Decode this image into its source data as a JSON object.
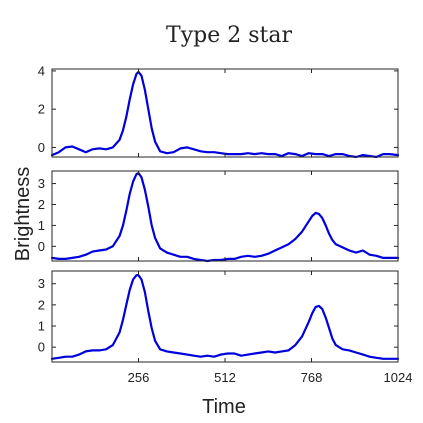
{
  "chart_data": {
    "type": "line",
    "title": "Type 2 star",
    "xlabel": "Time",
    "ylabel": "Brightness",
    "xlim": [
      0,
      1024
    ],
    "x_ticks": [
      256,
      512,
      768,
      1024
    ],
    "x_tick_labels": [
      "256",
      "512",
      "768",
      "1024"
    ],
    "grid": false,
    "line_color": "#0000dd",
    "panels": [
      {
        "ylim": [
          -0.5,
          4.1
        ],
        "y_ticks": [
          0,
          2,
          4
        ],
        "y_tick_labels": [
          "0",
          "2",
          "4"
        ],
        "series": [
          {
            "x": [
              0,
              20,
              40,
              60,
              80,
              100,
              120,
              140,
              160,
              180,
              200,
              210,
              220,
              230,
              240,
              250,
              256,
              265,
              275,
              285,
              295,
              305,
              320,
              340,
              360,
              380,
              400,
              420,
              440,
              460,
              480,
              500,
              520,
              540,
              560,
              580,
              600,
              620,
              640,
              660,
              680,
              700,
              720,
              740,
              760,
              780,
              800,
              820,
              840,
              860,
              880,
              900,
              920,
              940,
              960,
              980,
              1000,
              1024
            ],
            "y": [
              -0.4,
              -0.25,
              0.0,
              0.05,
              -0.1,
              -0.25,
              -0.1,
              -0.05,
              -0.1,
              0.0,
              0.4,
              0.9,
              1.6,
              2.5,
              3.3,
              3.85,
              3.95,
              3.75,
              3.0,
              2.0,
              1.0,
              0.3,
              -0.2,
              -0.3,
              -0.25,
              -0.05,
              0.0,
              -0.1,
              -0.2,
              -0.25,
              -0.25,
              -0.3,
              -0.35,
              -0.35,
              -0.35,
              -0.3,
              -0.35,
              -0.3,
              -0.35,
              -0.35,
              -0.45,
              -0.3,
              -0.35,
              -0.45,
              -0.3,
              -0.35,
              -0.35,
              -0.45,
              -0.35,
              -0.35,
              -0.45,
              -0.5,
              -0.4,
              -0.45,
              -0.5,
              -0.35,
              -0.35,
              -0.4
            ]
          }
        ]
      },
      {
        "ylim": [
          -0.7,
          3.6
        ],
        "y_ticks": [
          0,
          1,
          2,
          3
        ],
        "y_tick_labels": [
          "0",
          "1",
          "2",
          "3"
        ],
        "series": [
          {
            "x": [
              0,
              20,
              40,
              60,
              80,
              100,
              120,
              140,
              160,
              180,
              200,
              210,
              220,
              230,
              240,
              250,
              256,
              265,
              275,
              285,
              295,
              305,
              320,
              340,
              360,
              380,
              400,
              420,
              440,
              460,
              480,
              500,
              520,
              540,
              560,
              580,
              600,
              620,
              640,
              660,
              680,
              700,
              720,
              740,
              760,
              770,
              780,
              790,
              800,
              810,
              820,
              830,
              840,
              860,
              880,
              900,
              920,
              940,
              960,
              980,
              1000,
              1024
            ],
            "y": [
              -0.55,
              -0.6,
              -0.6,
              -0.55,
              -0.5,
              -0.4,
              -0.25,
              -0.2,
              -0.15,
              0.0,
              0.5,
              1.0,
              1.7,
              2.5,
              3.1,
              3.45,
              3.5,
              3.3,
              2.7,
              1.9,
              1.0,
              0.4,
              -0.1,
              -0.3,
              -0.4,
              -0.5,
              -0.5,
              -0.6,
              -0.65,
              -0.7,
              -0.65,
              -0.65,
              -0.6,
              -0.6,
              -0.5,
              -0.45,
              -0.5,
              -0.45,
              -0.35,
              -0.2,
              -0.05,
              0.1,
              0.35,
              0.7,
              1.2,
              1.45,
              1.6,
              1.55,
              1.35,
              1.0,
              0.6,
              0.3,
              0.1,
              -0.05,
              -0.2,
              -0.3,
              -0.2,
              -0.4,
              -0.45,
              -0.55,
              -0.55,
              -0.55
            ]
          }
        ]
      },
      {
        "ylim": [
          -0.7,
          3.6
        ],
        "y_ticks": [
          0,
          1,
          2,
          3
        ],
        "y_tick_labels": [
          "0",
          "1",
          "2",
          "3"
        ],
        "series": [
          {
            "x": [
              0,
              20,
              40,
              60,
              80,
              100,
              120,
              140,
              160,
              180,
              200,
              210,
              220,
              230,
              240,
              250,
              256,
              265,
              275,
              285,
              295,
              305,
              320,
              340,
              360,
              380,
              400,
              420,
              440,
              460,
              480,
              500,
              520,
              540,
              560,
              580,
              600,
              620,
              640,
              660,
              680,
              700,
              720,
              740,
              760,
              770,
              780,
              790,
              800,
              810,
              820,
              830,
              840,
              860,
              880,
              900,
              920,
              940,
              960,
              980,
              1000,
              1024
            ],
            "y": [
              -0.55,
              -0.5,
              -0.45,
              -0.45,
              -0.35,
              -0.2,
              -0.15,
              -0.15,
              -0.1,
              0.1,
              0.7,
              1.3,
              2.0,
              2.7,
              3.2,
              3.4,
              3.4,
              3.2,
              2.6,
              1.7,
              0.9,
              0.3,
              -0.1,
              -0.2,
              -0.25,
              -0.3,
              -0.35,
              -0.4,
              -0.45,
              -0.4,
              -0.45,
              -0.35,
              -0.3,
              -0.3,
              -0.4,
              -0.35,
              -0.3,
              -0.25,
              -0.2,
              -0.25,
              -0.2,
              -0.15,
              0.1,
              0.5,
              1.2,
              1.6,
              1.9,
              1.95,
              1.8,
              1.4,
              0.9,
              0.4,
              0.1,
              -0.1,
              -0.15,
              -0.25,
              -0.35,
              -0.45,
              -0.5,
              -0.55,
              -0.55,
              -0.55
            ]
          }
        ]
      }
    ]
  }
}
